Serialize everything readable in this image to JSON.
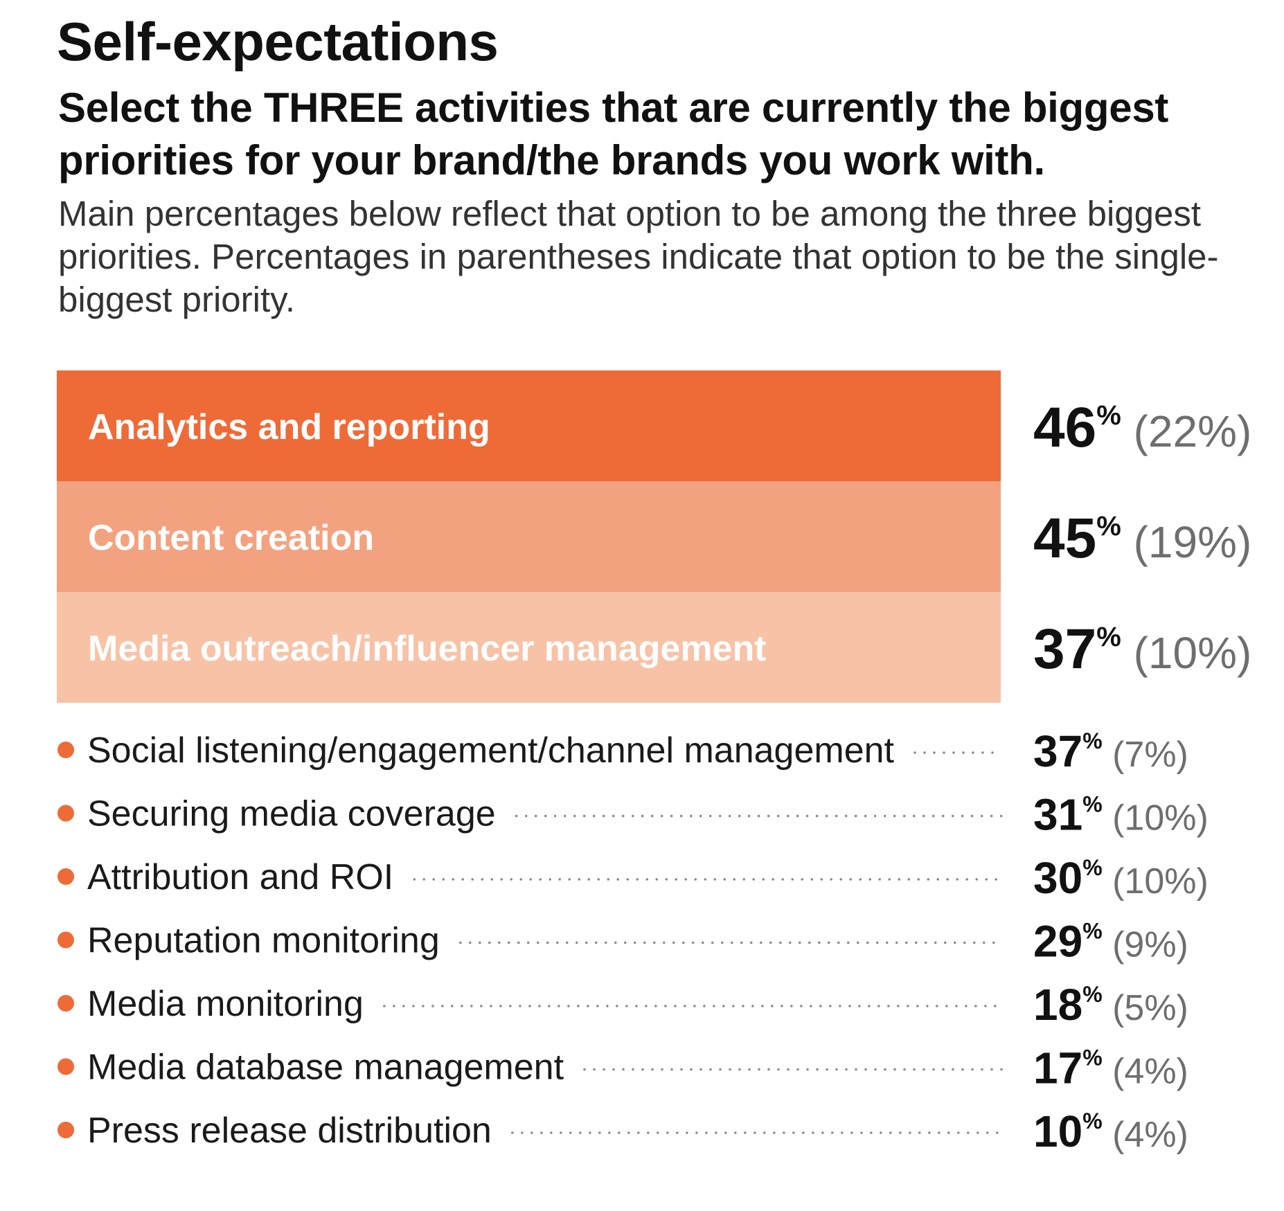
{
  "title": "Self-expectations",
  "subtitle": "Select the THREE activities that are currently the biggest priorities for your brand/the brands you work with.",
  "note": "Main percentages below reflect that option to be among the three biggest priorities. Percentages in parentheses indicate that option to be the single-biggest priority.",
  "colors": {
    "top1": "#ee6b37",
    "top2": "#f3a27f",
    "top3": "#f8c2a7",
    "bullet": "#ee6b37",
    "dots": "#888888",
    "value": "#111111",
    "paren": "#6e6e6e"
  },
  "chart_data": {
    "type": "table",
    "percent_suffix": "%",
    "highlighted": [
      {
        "label": "Analytics and reporting",
        "value": 46,
        "value_text": "46",
        "single_text": "(22%)",
        "single": 22
      },
      {
        "label": "Content creation",
        "value": 45,
        "value_text": "45",
        "single_text": "(19%)",
        "single": 19
      },
      {
        "label": "Media outreach/influencer management",
        "value": 37,
        "value_text": "37",
        "single_text": "(10%)",
        "single": 10
      }
    ],
    "others": [
      {
        "label": "Social listening/engagement/channel management",
        "value": 37,
        "value_text": "37",
        "single_text": "(7%)",
        "single": 7
      },
      {
        "label": "Securing media coverage",
        "value": 31,
        "value_text": "31",
        "single_text": "(10%)",
        "single": 10
      },
      {
        "label": "Attribution and ROI",
        "value": 30,
        "value_text": "30",
        "single_text": "(10%)",
        "single": 10
      },
      {
        "label": "Reputation monitoring",
        "value": 29,
        "value_text": "29",
        "single_text": "(9%)",
        "single": 9
      },
      {
        "label": "Media monitoring",
        "value": 18,
        "value_text": "18",
        "single_text": "(5%)",
        "single": 5
      },
      {
        "label": "Media database management",
        "value": 17,
        "value_text": "17",
        "single_text": "(4%)",
        "single": 4
      },
      {
        "label": "Press release distribution",
        "value": 10,
        "value_text": "10",
        "single_text": "(4%)",
        "single": 4
      }
    ]
  }
}
